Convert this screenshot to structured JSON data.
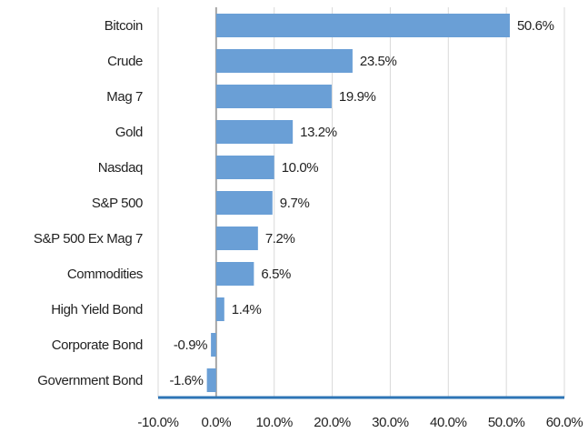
{
  "chart_data": {
    "type": "hbar",
    "categories": [
      "Bitcoin",
      "Crude",
      "Mag 7",
      "Gold",
      "Nasdaq",
      "S&P 500",
      "S&P 500 Ex Mag 7",
      "Commodities",
      "High Yield Bond",
      "Corporate Bond",
      "Government Bond"
    ],
    "values": [
      50.6,
      23.5,
      19.9,
      13.2,
      10.0,
      9.7,
      7.2,
      6.5,
      1.4,
      -0.9,
      -1.6
    ],
    "value_labels": [
      "50.6%",
      "23.5%",
      "19.9%",
      "13.2%",
      "10.0%",
      "9.7%",
      "7.2%",
      "6.5%",
      "1.4%",
      "-0.9%",
      "-1.6%"
    ],
    "color": "#6a9fd6",
    "xlim": [
      -10,
      60
    ],
    "xticks": [
      {
        "value": -10,
        "label": "-10.0%"
      },
      {
        "value": 0,
        "label": "0.0%"
      },
      {
        "value": 10,
        "label": "10.0%"
      },
      {
        "value": 20,
        "label": "20.0%"
      },
      {
        "value": 30,
        "label": "30.0%"
      },
      {
        "value": 40,
        "label": "40.0%"
      },
      {
        "value": 50,
        "label": "50.0%"
      },
      {
        "value": 60,
        "label": "60.0%"
      }
    ],
    "grid": true
  }
}
